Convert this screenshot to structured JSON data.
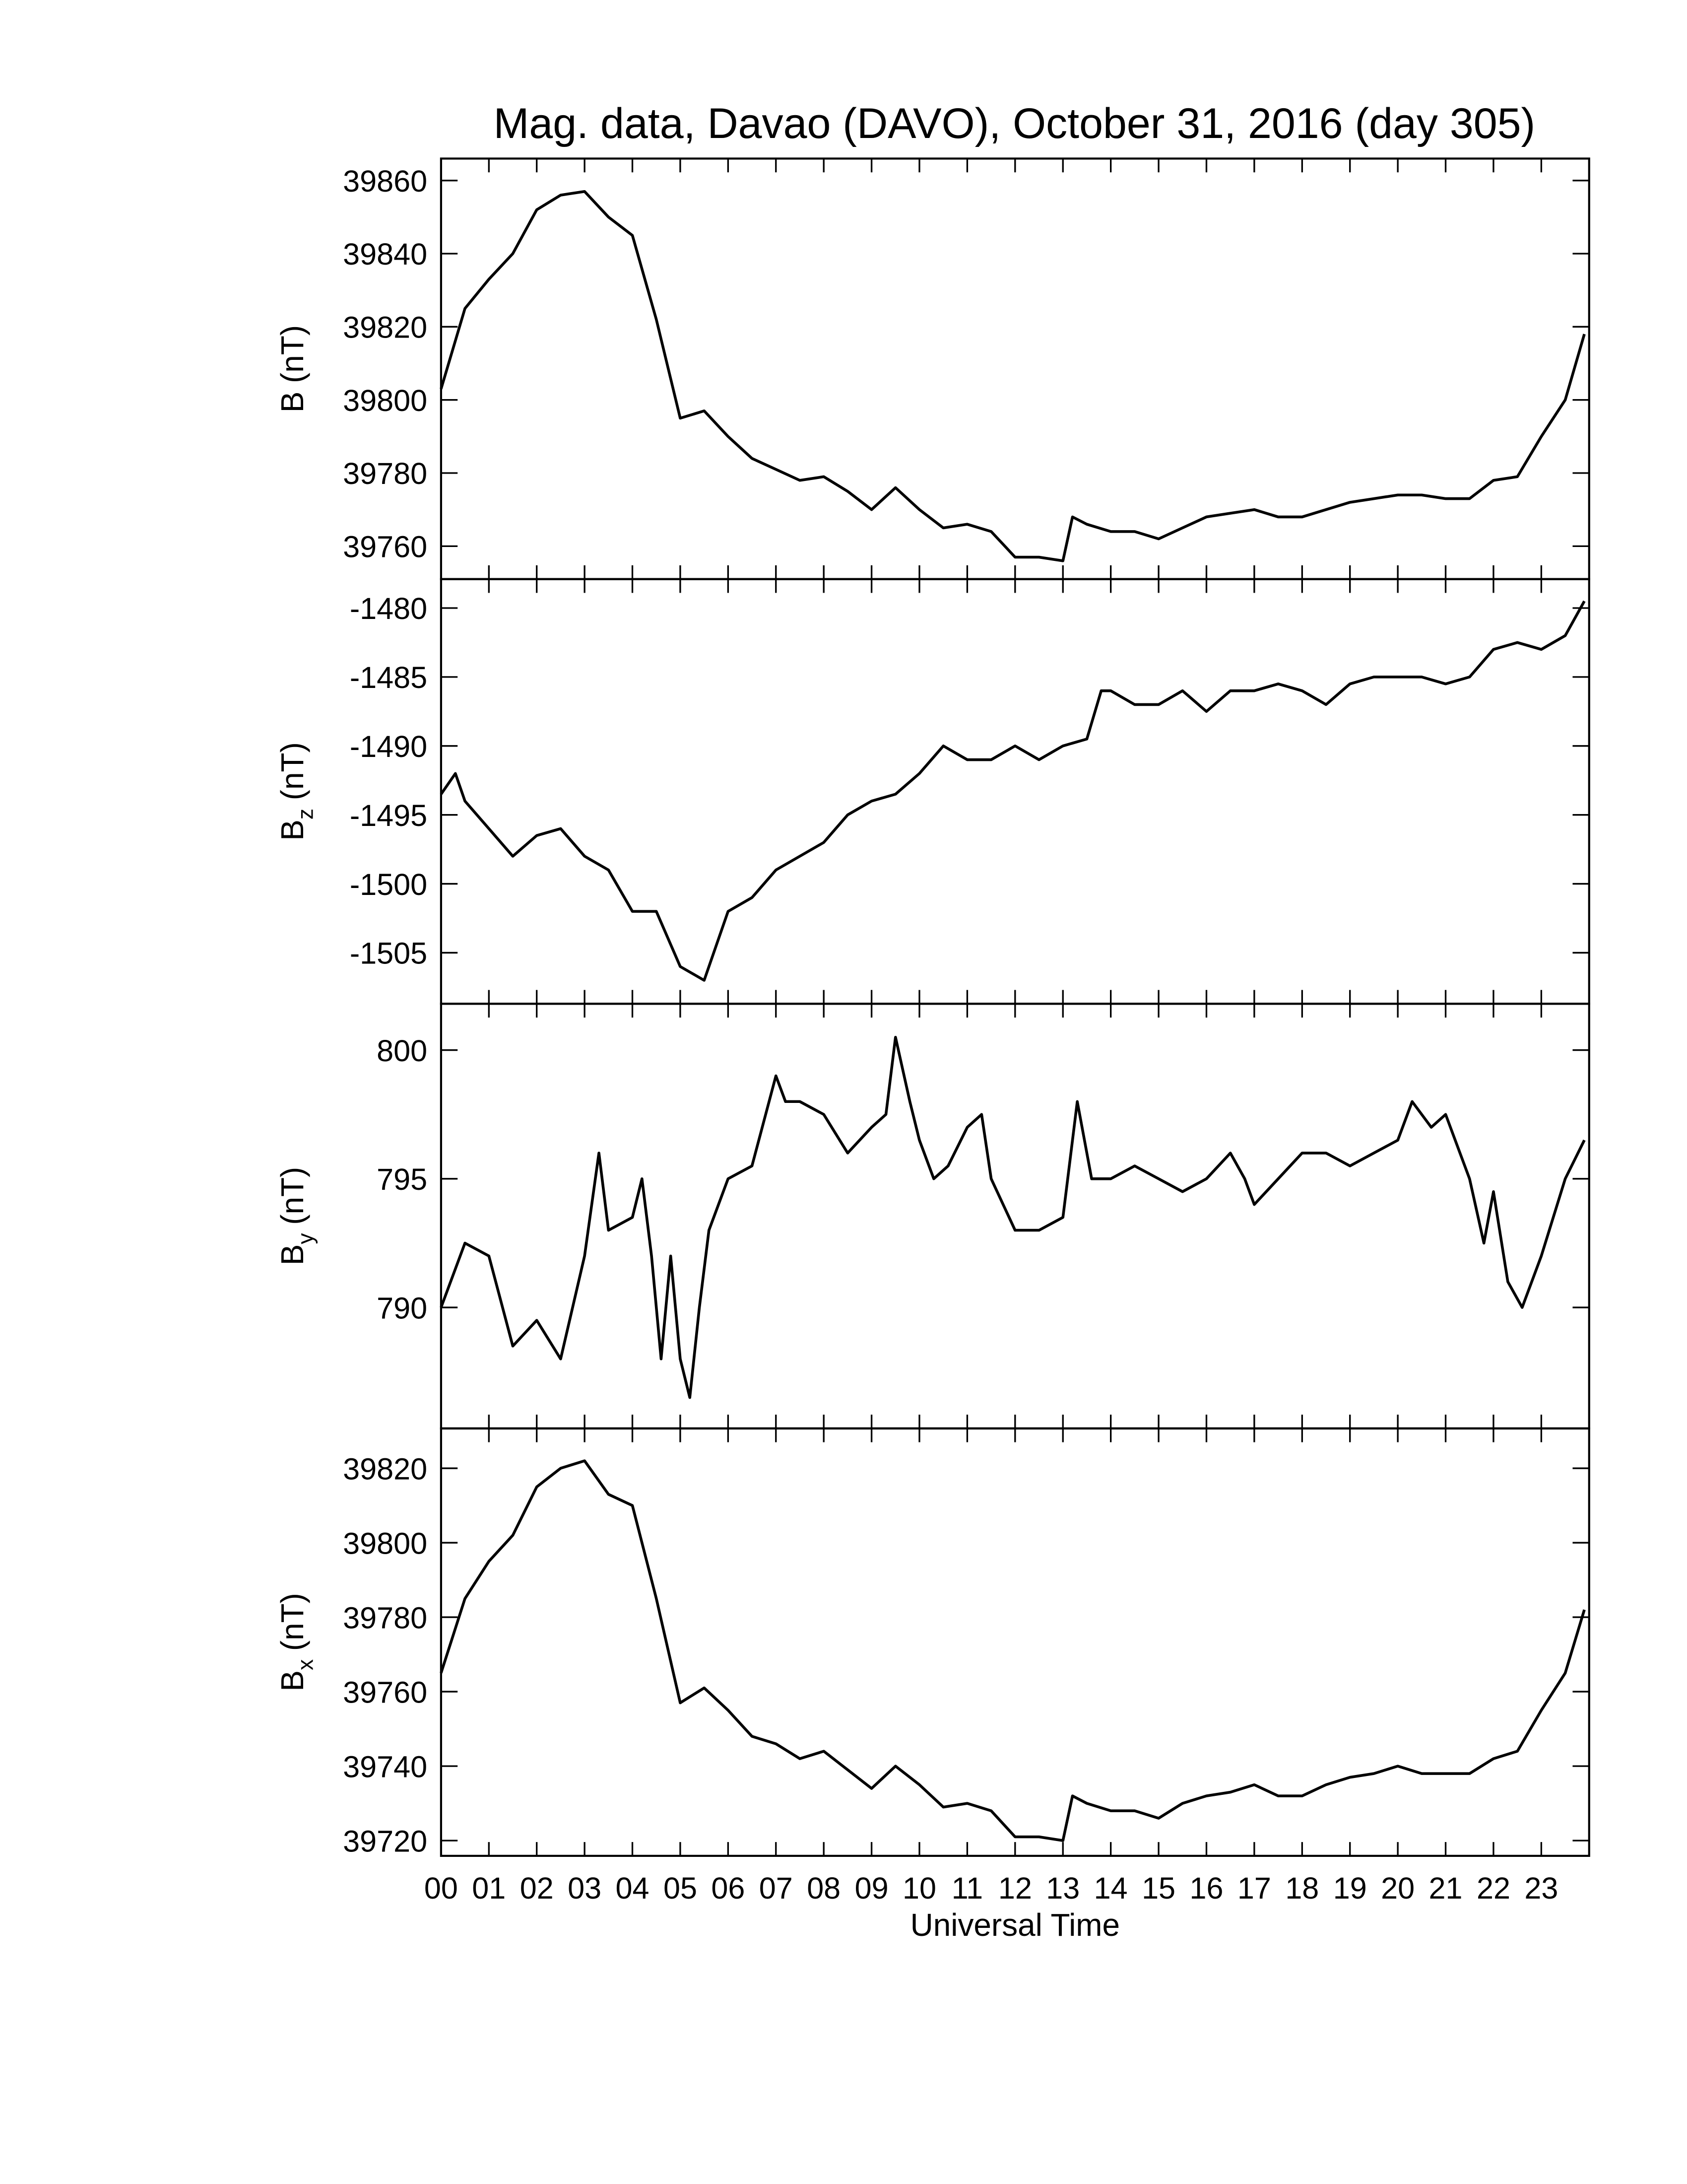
{
  "chart_data": [
    {
      "type": "line",
      "title": "Mag. data, Davao (DAVO), October 31, 2016 (day 305)",
      "ylabel": [
        "B",
        "(nT)"
      ],
      "color": "#000000",
      "x": [
        0,
        0.5,
        1,
        1.5,
        2,
        2.5,
        3,
        3.5,
        4,
        4.5,
        5,
        5.5,
        6,
        6.5,
        7,
        7.5,
        8,
        8.5,
        9,
        9.5,
        10,
        10.5,
        11,
        11.5,
        12,
        12.5,
        13,
        13.2,
        13.5,
        14,
        14.5,
        15,
        15.5,
        16,
        16.5,
        17,
        17.5,
        18,
        18.5,
        19,
        19.5,
        20,
        20.5,
        21,
        21.5,
        22,
        22.5,
        23,
        23.5,
        23.9
      ],
      "values": [
        39803,
        39825,
        39833,
        39840,
        39852,
        39856,
        39857,
        39850,
        39845,
        39822,
        39795,
        39797,
        39790,
        39784,
        39781,
        39778,
        39779,
        39775,
        39770,
        39776,
        39770,
        39765,
        39766,
        39764,
        39757,
        39757,
        39756,
        39768,
        39766,
        39764,
        39764,
        39762,
        39765,
        39768,
        39769,
        39770,
        39768,
        39768,
        39770,
        39772,
        39773,
        39774,
        39774,
        39773,
        39773,
        39778,
        39779,
        39790,
        39800,
        39818
      ],
      "xlim": [
        0,
        24
      ],
      "xticks": [
        0,
        1,
        2,
        3,
        4,
        5,
        6,
        7,
        8,
        9,
        10,
        11,
        12,
        13,
        14,
        15,
        16,
        17,
        18,
        19,
        20,
        21,
        22,
        23
      ],
      "ylim": [
        39751,
        39866
      ],
      "yticks": [
        39760,
        39780,
        39800,
        39820,
        39840,
        39860
      ]
    },
    {
      "type": "line",
      "ylabel": [
        "B",
        "z",
        "(nT)"
      ],
      "color": "#000000",
      "x": [
        0,
        0.3,
        0.5,
        1,
        1.5,
        2,
        2.5,
        3,
        3.5,
        4,
        4.5,
        5,
        5.5,
        6,
        6.5,
        7,
        7.5,
        8,
        8.5,
        9,
        9.5,
        10,
        10.5,
        11,
        11.5,
        12,
        12.5,
        13,
        13.5,
        13.8,
        14,
        14.5,
        15,
        15.5,
        16,
        16.5,
        17,
        17.5,
        18,
        18.5,
        19,
        19.5,
        20,
        20.5,
        21,
        21.5,
        22,
        22.5,
        23,
        23.5,
        23.9
      ],
      "values": [
        -1493.5,
        -1492,
        -1494,
        -1496,
        -1498,
        -1496.5,
        -1496,
        -1498,
        -1499,
        -1502,
        -1502,
        -1506,
        -1507,
        -1502,
        -1501,
        -1499,
        -1498,
        -1497,
        -1495,
        -1494,
        -1493.5,
        -1492,
        -1490,
        -1491,
        -1491,
        -1490,
        -1491,
        -1490,
        -1489.5,
        -1486,
        -1486,
        -1487,
        -1487,
        -1486,
        -1487.5,
        -1486,
        -1486,
        -1485.5,
        -1486,
        -1487,
        -1485.5,
        -1485,
        -1485,
        -1485,
        -1485.5,
        -1485,
        -1483,
        -1482.5,
        -1483,
        -1482,
        -1479.5
      ],
      "xlim": [
        0,
        24
      ],
      "xticks": [
        0,
        1,
        2,
        3,
        4,
        5,
        6,
        7,
        8,
        9,
        10,
        11,
        12,
        13,
        14,
        15,
        16,
        17,
        18,
        19,
        20,
        21,
        22,
        23
      ],
      "ylim": [
        -1508.7,
        -1477.9
      ],
      "yticks": [
        -1505,
        -1500,
        -1495,
        -1490,
        -1485,
        -1480
      ]
    },
    {
      "type": "line",
      "ylabel": [
        "B",
        "y",
        "(nT)"
      ],
      "color": "#000000",
      "x": [
        0,
        0.5,
        1,
        1.5,
        2,
        2.5,
        3,
        3.3,
        3.5,
        4,
        4.2,
        4.4,
        4.6,
        4.8,
        5,
        5.2,
        5.4,
        5.6,
        6,
        6.5,
        7,
        7.2,
        7.5,
        8,
        8.5,
        9,
        9.3,
        9.5,
        9.8,
        10,
        10.3,
        10.6,
        11,
        11.3,
        11.5,
        12,
        12.5,
        13,
        13.3,
        13.6,
        14,
        14.5,
        15,
        15.5,
        16,
        16.5,
        16.8,
        17,
        17.5,
        18,
        18.5,
        19,
        19.5,
        20,
        20.3,
        20.7,
        21,
        21.5,
        21.8,
        22,
        22.3,
        22.6,
        23,
        23.5,
        23.9
      ],
      "values": [
        790,
        792.5,
        792,
        788.5,
        789.5,
        788,
        792,
        796,
        793,
        793.5,
        795,
        792,
        788,
        792,
        788,
        786.5,
        790,
        793,
        795,
        795.5,
        799,
        798,
        798,
        797.5,
        796,
        797,
        797.5,
        800.5,
        798,
        796.5,
        795,
        795.5,
        797,
        797.5,
        795,
        793,
        793,
        793.5,
        798,
        795,
        795,
        795.5,
        795,
        794.5,
        795,
        796,
        795,
        794,
        795,
        796,
        796,
        795.5,
        796,
        796.5,
        798,
        797,
        797.5,
        795,
        792.5,
        794.5,
        791,
        790,
        792,
        795,
        796.5
      ],
      "xlim": [
        0,
        24
      ],
      "xticks": [
        0,
        1,
        2,
        3,
        4,
        5,
        6,
        7,
        8,
        9,
        10,
        11,
        12,
        13,
        14,
        15,
        16,
        17,
        18,
        19,
        20,
        21,
        22,
        23
      ],
      "ylim": [
        785.3,
        801.8
      ],
      "yticks": [
        790,
        795,
        800
      ]
    },
    {
      "type": "line",
      "ylabel": [
        "B",
        "x",
        "(nT)"
      ],
      "xlabel": "Universal Time",
      "color": "#000000",
      "x": [
        0,
        0.5,
        1,
        1.5,
        2,
        2.5,
        3,
        3.5,
        4,
        4.5,
        5,
        5.5,
        6,
        6.5,
        7,
        7.5,
        8,
        8.5,
        9,
        9.5,
        10,
        10.5,
        11,
        11.5,
        12,
        12.5,
        13,
        13.2,
        13.5,
        14,
        14.5,
        15,
        15.5,
        16,
        16.5,
        17,
        17.5,
        18,
        18.5,
        19,
        19.5,
        20,
        20.5,
        21,
        21.5,
        22,
        22.5,
        23,
        23.5,
        23.9
      ],
      "values": [
        39765,
        39785,
        39795,
        39802,
        39815,
        39820,
        39822,
        39813,
        39810,
        39785,
        39757,
        39761,
        39755,
        39748,
        39746,
        39742,
        39744,
        39739,
        39734,
        39740,
        39735,
        39729,
        39730,
        39728,
        39721,
        39721,
        39720,
        39732,
        39730,
        39728,
        39728,
        39726,
        39730,
        39732,
        39733,
        39735,
        39732,
        39732,
        39735,
        39737,
        39738,
        39740,
        39738,
        39738,
        39738,
        39742,
        39744,
        39755,
        39765,
        39782
      ],
      "xlim": [
        0,
        24
      ],
      "xticks": [
        {
          "value": 0,
          "label": "00"
        },
        {
          "value": 1,
          "label": "01"
        },
        {
          "value": 2,
          "label": "02"
        },
        {
          "value": 3,
          "label": "03"
        },
        {
          "value": 4,
          "label": "04"
        },
        {
          "value": 5,
          "label": "05"
        },
        {
          "value": 6,
          "label": "06"
        },
        {
          "value": 7,
          "label": "07"
        },
        {
          "value": 8,
          "label": "08"
        },
        {
          "value": 9,
          "label": "09"
        },
        {
          "value": 10,
          "label": "10"
        },
        {
          "value": 11,
          "label": "11"
        },
        {
          "value": 12,
          "label": "12"
        },
        {
          "value": 13,
          "label": "13"
        },
        {
          "value": 14,
          "label": "14"
        },
        {
          "value": 15,
          "label": "15"
        },
        {
          "value": 16,
          "label": "16"
        },
        {
          "value": 17,
          "label": "17"
        },
        {
          "value": 18,
          "label": "18"
        },
        {
          "value": 19,
          "label": "19"
        },
        {
          "value": 20,
          "label": "20"
        },
        {
          "value": 21,
          "label": "21"
        },
        {
          "value": 22,
          "label": "22"
        },
        {
          "value": 23,
          "label": "23"
        }
      ],
      "ylim": [
        39715.9,
        39830.7
      ],
      "yticks": [
        39720,
        39740,
        39760,
        39780,
        39800,
        39820
      ]
    }
  ]
}
